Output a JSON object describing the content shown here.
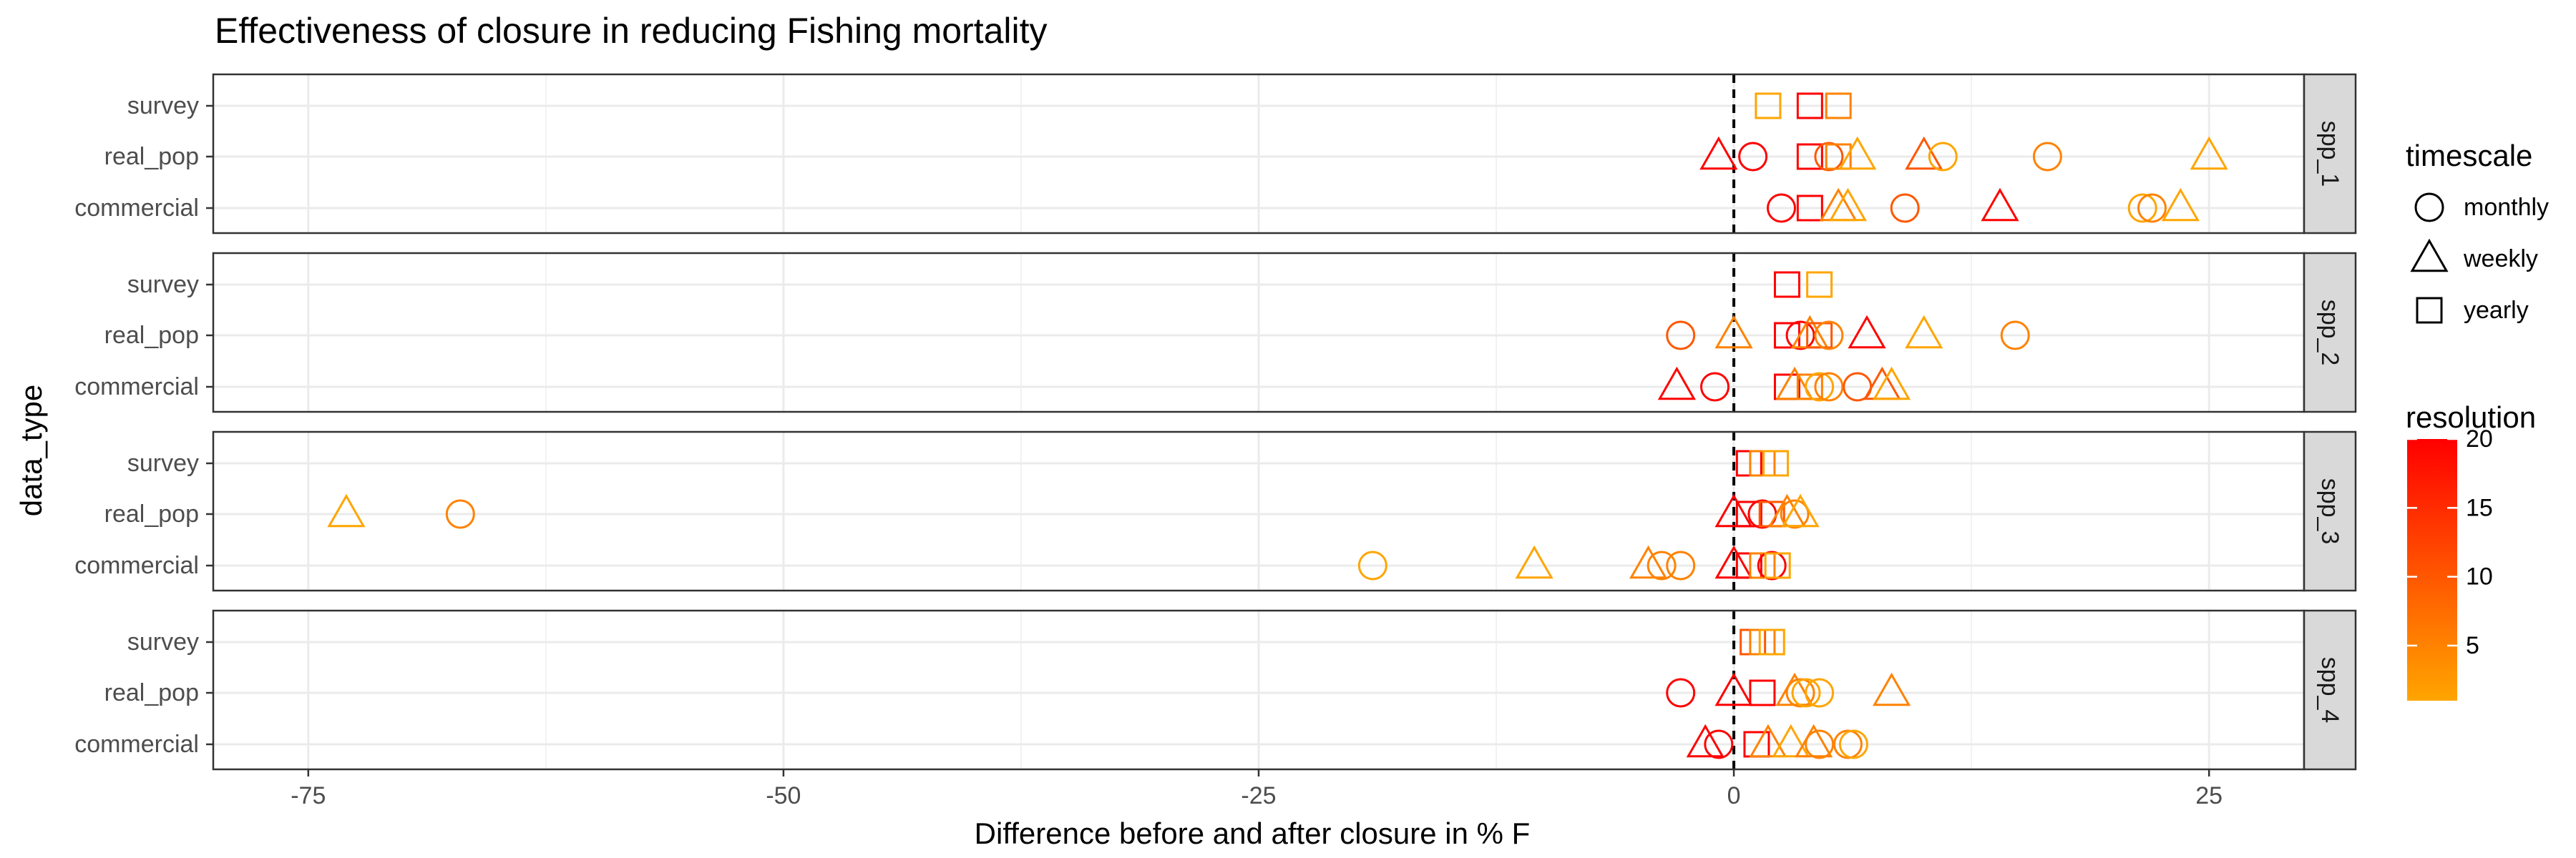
{
  "chart_data": {
    "type": "scatter",
    "title": "Effectiveness of closure in reducing Fishing mortality",
    "xlabel": "Difference before and after closure in % F",
    "ylabel": "data_type",
    "xlim": [
      -80,
      30
    ],
    "x_ticks": [
      -75,
      -50,
      -25,
      0,
      25
    ],
    "categories": [
      "survey",
      "real_pop",
      "commercial"
    ],
    "facets": [
      "spp_1",
      "spp_2",
      "spp_3",
      "spp_4"
    ],
    "reference_line_x": 0,
    "grid": true,
    "legend": {
      "position": "right",
      "shape": {
        "title": "timescale",
        "entries": [
          {
            "label": "monthly",
            "shape": "circle"
          },
          {
            "label": "weekly",
            "shape": "triangle"
          },
          {
            "label": "yearly",
            "shape": "square"
          }
        ]
      },
      "color": {
        "title": "resolution",
        "min": 1,
        "max": 20,
        "ticks": [
          5,
          10,
          15,
          20
        ],
        "low_color": "#FFA500",
        "high_color": "#FF0000"
      }
    },
    "points": [
      {
        "facet": "spp_1",
        "category": "survey",
        "x": 1.8,
        "timescale": "yearly",
        "resolution": 1
      },
      {
        "facet": "spp_1",
        "category": "survey",
        "x": 4.0,
        "timescale": "yearly",
        "resolution": 20
      },
      {
        "facet": "spp_1",
        "category": "survey",
        "x": 5.5,
        "timescale": "yearly",
        "resolution": 5
      },
      {
        "facet": "spp_1",
        "category": "real_pop",
        "x": -0.8,
        "timescale": "weekly",
        "resolution": 20
      },
      {
        "facet": "spp_1",
        "category": "real_pop",
        "x": 1.0,
        "timescale": "monthly",
        "resolution": 20
      },
      {
        "facet": "spp_1",
        "category": "real_pop",
        "x": 4.0,
        "timescale": "yearly",
        "resolution": 20
      },
      {
        "facet": "spp_1",
        "category": "real_pop",
        "x": 5.0,
        "timescale": "monthly",
        "resolution": 10
      },
      {
        "facet": "spp_1",
        "category": "real_pop",
        "x": 5.5,
        "timescale": "yearly",
        "resolution": 5
      },
      {
        "facet": "spp_1",
        "category": "real_pop",
        "x": 6.5,
        "timescale": "weekly",
        "resolution": 1
      },
      {
        "facet": "spp_1",
        "category": "real_pop",
        "x": 10.0,
        "timescale": "weekly",
        "resolution": 10
      },
      {
        "facet": "spp_1",
        "category": "real_pop",
        "x": 11.0,
        "timescale": "monthly",
        "resolution": 1
      },
      {
        "facet": "spp_1",
        "category": "real_pop",
        "x": 16.5,
        "timescale": "monthly",
        "resolution": 5
      },
      {
        "facet": "spp_1",
        "category": "real_pop",
        "x": 25.0,
        "timescale": "weekly",
        "resolution": 1
      },
      {
        "facet": "spp_1",
        "category": "commercial",
        "x": 2.5,
        "timescale": "monthly",
        "resolution": 20
      },
      {
        "facet": "spp_1",
        "category": "commercial",
        "x": 4.0,
        "timescale": "yearly",
        "resolution": 20
      },
      {
        "facet": "spp_1",
        "category": "commercial",
        "x": 5.5,
        "timescale": "weekly",
        "resolution": 5
      },
      {
        "facet": "spp_1",
        "category": "commercial",
        "x": 6.0,
        "timescale": "weekly",
        "resolution": 1
      },
      {
        "facet": "spp_1",
        "category": "commercial",
        "x": 9.0,
        "timescale": "monthly",
        "resolution": 10
      },
      {
        "facet": "spp_1",
        "category": "commercial",
        "x": 14.0,
        "timescale": "weekly",
        "resolution": 20
      },
      {
        "facet": "spp_1",
        "category": "commercial",
        "x": 21.5,
        "timescale": "monthly",
        "resolution": 1
      },
      {
        "facet": "spp_1",
        "category": "commercial",
        "x": 22.0,
        "timescale": "monthly",
        "resolution": 5
      },
      {
        "facet": "spp_1",
        "category": "commercial",
        "x": 23.5,
        "timescale": "weekly",
        "resolution": 1
      },
      {
        "facet": "spp_2",
        "category": "survey",
        "x": 2.8,
        "timescale": "yearly",
        "resolution": 20
      },
      {
        "facet": "spp_2",
        "category": "survey",
        "x": 4.5,
        "timescale": "yearly",
        "resolution": 1
      },
      {
        "facet": "spp_2",
        "category": "real_pop",
        "x": -2.8,
        "timescale": "monthly",
        "resolution": 10
      },
      {
        "facet": "spp_2",
        "category": "real_pop",
        "x": 0.0,
        "timescale": "weekly",
        "resolution": 5
      },
      {
        "facet": "spp_2",
        "category": "real_pop",
        "x": 2.8,
        "timescale": "yearly",
        "resolution": 20
      },
      {
        "facet": "spp_2",
        "category": "real_pop",
        "x": 3.5,
        "timescale": "monthly",
        "resolution": 20
      },
      {
        "facet": "spp_2",
        "category": "real_pop",
        "x": 4.0,
        "timescale": "weekly",
        "resolution": 5
      },
      {
        "facet": "spp_2",
        "category": "real_pop",
        "x": 4.5,
        "timescale": "yearly",
        "resolution": 10
      },
      {
        "facet": "spp_2",
        "category": "real_pop",
        "x": 5.0,
        "timescale": "monthly",
        "resolution": 5
      },
      {
        "facet": "spp_2",
        "category": "real_pop",
        "x": 7.0,
        "timescale": "weekly",
        "resolution": 20
      },
      {
        "facet": "spp_2",
        "category": "real_pop",
        "x": 10.0,
        "timescale": "weekly",
        "resolution": 1
      },
      {
        "facet": "spp_2",
        "category": "real_pop",
        "x": 14.8,
        "timescale": "monthly",
        "resolution": 5
      },
      {
        "facet": "spp_2",
        "category": "commercial",
        "x": -3.0,
        "timescale": "weekly",
        "resolution": 20
      },
      {
        "facet": "spp_2",
        "category": "commercial",
        "x": -1.0,
        "timescale": "monthly",
        "resolution": 20
      },
      {
        "facet": "spp_2",
        "category": "commercial",
        "x": 2.8,
        "timescale": "yearly",
        "resolution": 20
      },
      {
        "facet": "spp_2",
        "category": "commercial",
        "x": 3.2,
        "timescale": "weekly",
        "resolution": 5
      },
      {
        "facet": "spp_2",
        "category": "commercial",
        "x": 4.0,
        "timescale": "yearly",
        "resolution": 5
      },
      {
        "facet": "spp_2",
        "category": "commercial",
        "x": 4.5,
        "timescale": "monthly",
        "resolution": 1
      },
      {
        "facet": "spp_2",
        "category": "commercial",
        "x": 5.0,
        "timescale": "monthly",
        "resolution": 5
      },
      {
        "facet": "spp_2",
        "category": "commercial",
        "x": 6.5,
        "timescale": "monthly",
        "resolution": 10
      },
      {
        "facet": "spp_2",
        "category": "commercial",
        "x": 7.8,
        "timescale": "weekly",
        "resolution": 10
      },
      {
        "facet": "spp_2",
        "category": "commercial",
        "x": 8.3,
        "timescale": "weekly",
        "resolution": 1
      },
      {
        "facet": "spp_3",
        "category": "survey",
        "x": 0.8,
        "timescale": "yearly",
        "resolution": 20
      },
      {
        "facet": "spp_3",
        "category": "survey",
        "x": 1.5,
        "timescale": "yearly",
        "resolution": 5
      },
      {
        "facet": "spp_3",
        "category": "survey",
        "x": 2.2,
        "timescale": "yearly",
        "resolution": 1
      },
      {
        "facet": "spp_3",
        "category": "real_pop",
        "x": -73.0,
        "timescale": "weekly",
        "resolution": 1
      },
      {
        "facet": "spp_3",
        "category": "real_pop",
        "x": -67.0,
        "timescale": "monthly",
        "resolution": 5
      },
      {
        "facet": "spp_3",
        "category": "real_pop",
        "x": 0.0,
        "timescale": "weekly",
        "resolution": 20
      },
      {
        "facet": "spp_3",
        "category": "real_pop",
        "x": 0.8,
        "timescale": "yearly",
        "resolution": 20
      },
      {
        "facet": "spp_3",
        "category": "real_pop",
        "x": 1.5,
        "timescale": "monthly",
        "resolution": 20
      },
      {
        "facet": "spp_3",
        "category": "real_pop",
        "x": 2.0,
        "timescale": "yearly",
        "resolution": 10
      },
      {
        "facet": "spp_3",
        "category": "real_pop",
        "x": 2.8,
        "timescale": "weekly",
        "resolution": 5
      },
      {
        "facet": "spp_3",
        "category": "real_pop",
        "x": 3.2,
        "timescale": "monthly",
        "resolution": 5
      },
      {
        "facet": "spp_3",
        "category": "real_pop",
        "x": 3.5,
        "timescale": "weekly",
        "resolution": 1
      },
      {
        "facet": "spp_3",
        "category": "commercial",
        "x": -19.0,
        "timescale": "monthly",
        "resolution": 1
      },
      {
        "facet": "spp_3",
        "category": "commercial",
        "x": -10.5,
        "timescale": "weekly",
        "resolution": 1
      },
      {
        "facet": "spp_3",
        "category": "commercial",
        "x": -4.5,
        "timescale": "weekly",
        "resolution": 5
      },
      {
        "facet": "spp_3",
        "category": "commercial",
        "x": -3.8,
        "timescale": "monthly",
        "resolution": 5
      },
      {
        "facet": "spp_3",
        "category": "commercial",
        "x": -2.8,
        "timescale": "monthly",
        "resolution": 5
      },
      {
        "facet": "spp_3",
        "category": "commercial",
        "x": 0.0,
        "timescale": "weekly",
        "resolution": 20
      },
      {
        "facet": "spp_3",
        "category": "commercial",
        "x": 0.8,
        "timescale": "yearly",
        "resolution": 20
      },
      {
        "facet": "spp_3",
        "category": "commercial",
        "x": 1.5,
        "timescale": "yearly",
        "resolution": 5
      },
      {
        "facet": "spp_3",
        "category": "commercial",
        "x": 2.0,
        "timescale": "monthly",
        "resolution": 20
      },
      {
        "facet": "spp_3",
        "category": "commercial",
        "x": 2.3,
        "timescale": "yearly",
        "resolution": 1
      },
      {
        "facet": "spp_4",
        "category": "survey",
        "x": 1.0,
        "timescale": "yearly",
        "resolution": 10
      },
      {
        "facet": "spp_4",
        "category": "survey",
        "x": 1.5,
        "timescale": "yearly",
        "resolution": 5
      },
      {
        "facet": "spp_4",
        "category": "survey",
        "x": 2.0,
        "timescale": "yearly",
        "resolution": 1
      },
      {
        "facet": "spp_4",
        "category": "real_pop",
        "x": -2.8,
        "timescale": "monthly",
        "resolution": 20
      },
      {
        "facet": "spp_4",
        "category": "real_pop",
        "x": 0.0,
        "timescale": "weekly",
        "resolution": 20
      },
      {
        "facet": "spp_4",
        "category": "real_pop",
        "x": 1.5,
        "timescale": "yearly",
        "resolution": 20
      },
      {
        "facet": "spp_4",
        "category": "real_pop",
        "x": 3.2,
        "timescale": "weekly",
        "resolution": 5
      },
      {
        "facet": "spp_4",
        "category": "real_pop",
        "x": 3.5,
        "timescale": "monthly",
        "resolution": 5
      },
      {
        "facet": "spp_4",
        "category": "real_pop",
        "x": 3.8,
        "timescale": "monthly",
        "resolution": 1
      },
      {
        "facet": "spp_4",
        "category": "real_pop",
        "x": 4.5,
        "timescale": "monthly",
        "resolution": 1
      },
      {
        "facet": "spp_4",
        "category": "real_pop",
        "x": 8.3,
        "timescale": "weekly",
        "resolution": 5
      },
      {
        "facet": "spp_4",
        "category": "commercial",
        "x": -1.5,
        "timescale": "weekly",
        "resolution": 20
      },
      {
        "facet": "spp_4",
        "category": "commercial",
        "x": -0.8,
        "timescale": "monthly",
        "resolution": 20
      },
      {
        "facet": "spp_4",
        "category": "commercial",
        "x": 1.2,
        "timescale": "yearly",
        "resolution": 20
      },
      {
        "facet": "spp_4",
        "category": "commercial",
        "x": 1.8,
        "timescale": "weekly",
        "resolution": 5
      },
      {
        "facet": "spp_4",
        "category": "commercial",
        "x": 3.0,
        "timescale": "weekly",
        "resolution": 1
      },
      {
        "facet": "spp_4",
        "category": "commercial",
        "x": 4.2,
        "timescale": "weekly",
        "resolution": 5
      },
      {
        "facet": "spp_4",
        "category": "commercial",
        "x": 4.5,
        "timescale": "monthly",
        "resolution": 5
      },
      {
        "facet": "spp_4",
        "category": "commercial",
        "x": 6.0,
        "timescale": "monthly",
        "resolution": 5
      },
      {
        "facet": "spp_4",
        "category": "commercial",
        "x": 6.3,
        "timescale": "monthly",
        "resolution": 1
      }
    ]
  }
}
